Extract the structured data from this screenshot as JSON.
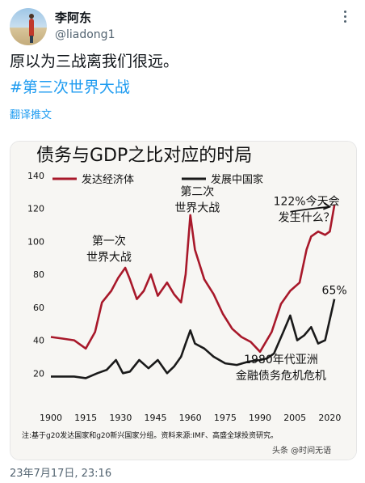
{
  "tweet": {
    "display_name": "李阿东",
    "handle": "@liadong1",
    "text": "原以为三战离我们很远。",
    "hashtag": "#第三次世界大战",
    "translate_label": "翻译推文",
    "timestamp": "23年7月17日, 23:16"
  },
  "icons": {
    "more": "more-icon",
    "avatar": "avatar-image"
  },
  "colors": {
    "developed": "#a8182a",
    "emerging": "#1a1a1a",
    "link": "#1d9bf0"
  },
  "chart_data": {
    "type": "line",
    "title": "债务与GDP之比对应的时局",
    "ylim": [
      0,
      140
    ],
    "xlim": [
      1900,
      2023
    ],
    "yticks": [
      20,
      40,
      60,
      80,
      100,
      120,
      140
    ],
    "xticks": [
      1900,
      1915,
      1930,
      1945,
      1960,
      1975,
      1990,
      2005,
      2020
    ],
    "legend_placement": "top",
    "series": [
      {
        "name": "发达经济体",
        "x": [
          1900,
          1905,
          1910,
          1915,
          1919,
          1922,
          1926,
          1929,
          1932,
          1934,
          1937,
          1940,
          1943,
          1946,
          1950,
          1953,
          1956,
          1958,
          1960,
          1962,
          1966,
          1970,
          1974,
          1978,
          1982,
          1986,
          1990,
          1995,
          1999,
          2003,
          2007,
          2010,
          2012,
          2015,
          2018,
          2020,
          2022
        ],
        "y": [
          42,
          41,
          40,
          35,
          45,
          63,
          70,
          78,
          84,
          77,
          65,
          70,
          80,
          67,
          75,
          68,
          63,
          80,
          116,
          95,
          77,
          68,
          56,
          47,
          42,
          39,
          33,
          45,
          62,
          70,
          75,
          95,
          103,
          106,
          104,
          106,
          122
        ]
      },
      {
        "name": "发展中国家",
        "x": [
          1900,
          1910,
          1915,
          1920,
          1924,
          1928,
          1931,
          1934,
          1938,
          1942,
          1946,
          1950,
          1953,
          1956,
          1958,
          1960,
          1962,
          1966,
          1970,
          1975,
          1980,
          1985,
          1990,
          1993,
          1996,
          2000,
          2003,
          2006,
          2009,
          2012,
          2015,
          2018,
          2022
        ],
        "y": [
          18,
          18,
          17,
          20,
          22,
          28,
          20,
          21,
          28,
          23,
          28,
          20,
          24,
          30,
          38,
          46,
          38,
          35,
          30,
          26,
          25,
          27,
          28,
          29,
          32,
          45,
          55,
          40,
          43,
          48,
          38,
          40,
          65
        ]
      }
    ],
    "annotations": [
      {
        "lines": [
          "第一次",
          "世界大战"
        ],
        "x": 1925,
        "y": 98
      },
      {
        "lines": [
          "第二次",
          "世界大战"
        ],
        "x": 1963,
        "y": 128
      },
      {
        "lines": [
          "122%今天会",
          "发生什么？"
        ],
        "x": 2010,
        "y": 122
      },
      {
        "lines": [
          "65%"
        ],
        "x": 2022,
        "y": 68
      },
      {
        "lines": [
          "1980年代亚洲",
          "金融债务危机危机"
        ],
        "x": 1999,
        "y": 26
      }
    ],
    "footnote": "注:基于g20发达国家和g20新兴国家分组。资料来源:IMF、高盛全球投资研究。",
    "watermark": "头条 @时间无语"
  }
}
